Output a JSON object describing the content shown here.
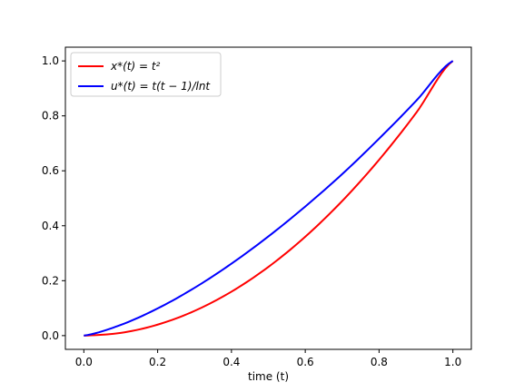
{
  "chart_data": {
    "type": "line",
    "title": "",
    "xlabel": "time (t)",
    "ylabel": "",
    "xlim": [
      -0.05,
      1.05
    ],
    "ylim": [
      -0.05,
      1.05
    ],
    "grid": false,
    "legend_position": "top-left",
    "x_ticks": [
      "0.0",
      "0.2",
      "0.4",
      "0.6",
      "0.8",
      "1.0"
    ],
    "y_ticks": [
      "0.0",
      "0.2",
      "0.4",
      "0.6",
      "0.8",
      "1.0"
    ],
    "x": [
      0.0,
      0.1,
      0.2,
      0.3,
      0.4,
      0.5,
      0.6,
      0.7,
      0.8,
      0.9,
      1.0
    ],
    "series": [
      {
        "name": "x*(t) = t²",
        "color": "#ff0000",
        "values": [
          0.0,
          0.01,
          0.04,
          0.09,
          0.16,
          0.25,
          0.36,
          0.49,
          0.64,
          0.81,
          1.0
        ]
      },
      {
        "name": "u*(t) = t(t − 1)/lnt",
        "color": "#0000ff",
        "values": [
          0.0,
          0.039,
          0.099,
          0.174,
          0.262,
          0.361,
          0.47,
          0.588,
          0.717,
          0.854,
          1.0
        ]
      }
    ]
  }
}
